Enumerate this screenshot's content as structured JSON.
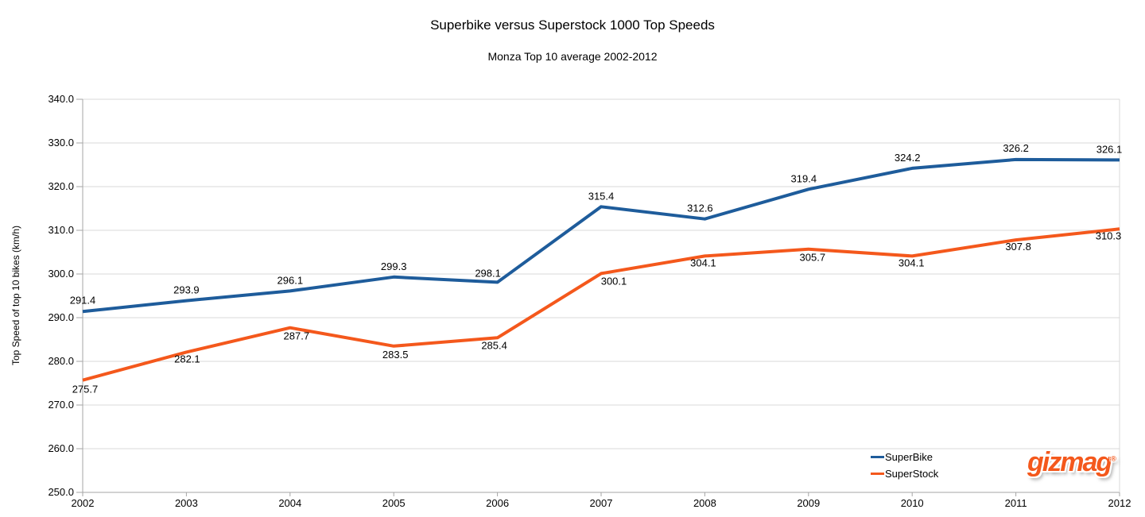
{
  "chart_data": {
    "type": "line",
    "title": "Superbike versus Superstock 1000 Top Speeds",
    "subtitle": "Monza Top 10 average 2002-2012",
    "xlabel": "",
    "ylabel": "Top Speed of top 10 bikes (km/h)",
    "categories": [
      "2002",
      "2003",
      "2004",
      "2005",
      "2006",
      "2007",
      "2008",
      "2009",
      "2010",
      "2011",
      "2012"
    ],
    "ylim": [
      250.0,
      340.0
    ],
    "ytick_step": 10,
    "ytick_labels": [
      "250.0",
      "260.0",
      "270.0",
      "280.0",
      "290.0",
      "300.0",
      "310.0",
      "320.0",
      "330.0",
      "340.0"
    ],
    "grid": true,
    "legend_position": "bottom-right",
    "series": [
      {
        "name": "SuperBike",
        "color": "#1E5C9B",
        "values": [
          291.4,
          293.9,
          296.1,
          299.3,
          298.1,
          315.4,
          312.6,
          319.4,
          324.2,
          326.2,
          326.1
        ],
        "label_side": "above",
        "label_offsets": [
          [
            0,
            -10
          ],
          [
            0,
            -9
          ],
          [
            0,
            -9
          ],
          [
            0,
            -9
          ],
          [
            -12,
            -7
          ],
          [
            0,
            -9
          ],
          [
            -6,
            -9
          ],
          [
            -6,
            -9
          ],
          [
            -6,
            -9
          ],
          [
            0,
            -10
          ],
          [
            -13,
            -9
          ]
        ]
      },
      {
        "name": "SuperStock",
        "color": "#F4581C",
        "values": [
          275.7,
          282.1,
          287.7,
          283.5,
          285.4,
          300.1,
          304.1,
          305.7,
          304.1,
          307.8,
          310.3
        ],
        "label_side": "below",
        "label_offsets": [
          [
            3,
            16
          ],
          [
            1,
            13
          ],
          [
            8,
            15
          ],
          [
            2,
            15
          ],
          [
            -4,
            14
          ],
          [
            16,
            14
          ],
          [
            -2,
            13
          ],
          [
            5,
            15
          ],
          [
            -1,
            13
          ],
          [
            3,
            13
          ],
          [
            -14,
            13
          ]
        ]
      }
    ]
  },
  "branding": {
    "logo_text": "gizmag",
    "registered_mark": "®",
    "logo_color": "#F4581C"
  },
  "colors": {
    "background": "#FFFFFF",
    "grid": "#D9D9D9",
    "axis": "#A6A6A6",
    "text": "#000000"
  }
}
